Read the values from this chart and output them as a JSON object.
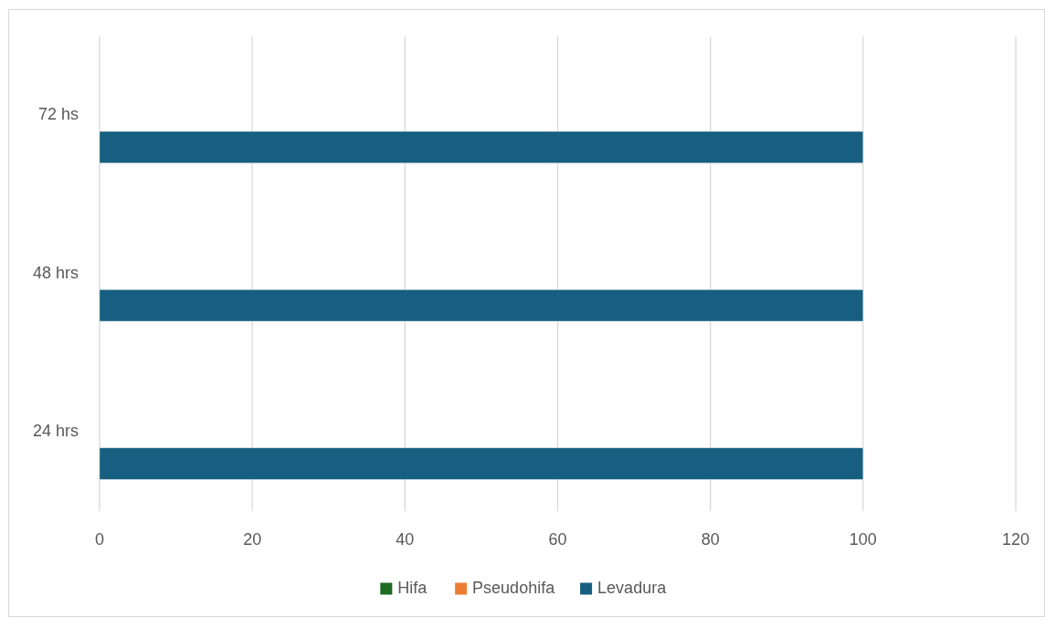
{
  "chart_data": {
    "type": "bar",
    "orientation": "horizontal",
    "categories": [
      "72 hs",
      "48 hrs",
      "24 hrs"
    ],
    "series": [
      {
        "name": "Hifa",
        "color": "#1e6b24",
        "values": [
          0,
          0,
          0
        ]
      },
      {
        "name": "Pseudohifa",
        "color": "#ed7d31",
        "values": [
          0,
          0,
          0
        ]
      },
      {
        "name": "Levadura",
        "color": "#175f80",
        "values": [
          100,
          100,
          100
        ]
      }
    ],
    "xlim": [
      0,
      120
    ],
    "xticks": [
      0,
      20,
      40,
      60,
      80,
      100,
      120
    ],
    "grid": "x",
    "legend": "bottom"
  }
}
